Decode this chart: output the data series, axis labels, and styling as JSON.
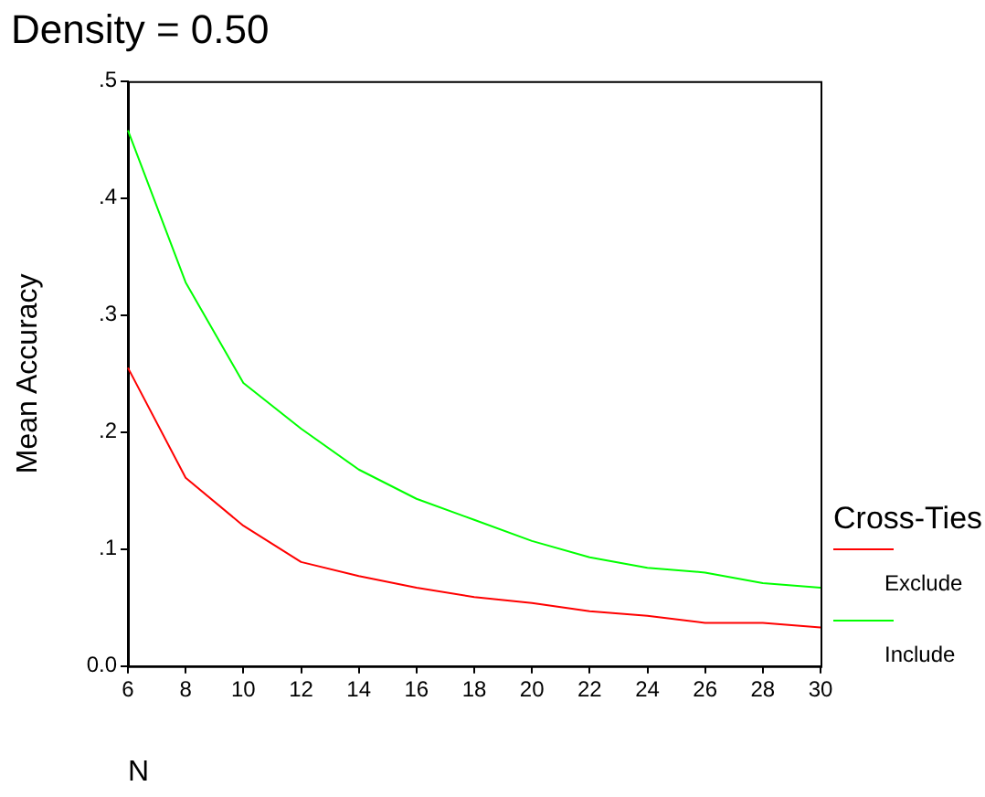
{
  "chart_data": {
    "type": "line",
    "title": "Density = 0.50",
    "xlabel": "N",
    "ylabel": "Mean Accuracy",
    "legend_title": "Cross-Ties",
    "x": [
      6,
      8,
      10,
      12,
      14,
      16,
      18,
      20,
      22,
      24,
      26,
      28,
      30
    ],
    "series": [
      {
        "name": "Exclude",
        "color": "#ff0000",
        "values": [
          0.255,
          0.161,
          0.12,
          0.089,
          0.077,
          0.067,
          0.059,
          0.054,
          0.047,
          0.043,
          0.037,
          0.037,
          0.033
        ]
      },
      {
        "name": "Include",
        "color": "#00ff00",
        "values": [
          0.458,
          0.328,
          0.242,
          0.203,
          0.168,
          0.143,
          0.125,
          0.107,
          0.093,
          0.084,
          0.08,
          0.071,
          0.067
        ]
      }
    ],
    "xlim": [
      6,
      30
    ],
    "xticks": [
      6,
      8,
      10,
      12,
      14,
      16,
      18,
      20,
      22,
      24,
      26,
      28,
      30
    ],
    "ylim": [
      0,
      0.5
    ],
    "yticks": [
      {
        "value": 0,
        "label": "0.0"
      },
      {
        "value": 0.1,
        "label": ".1"
      },
      {
        "value": 0.2,
        "label": ".2"
      },
      {
        "value": 0.3,
        "label": ".3"
      },
      {
        "value": 0.4,
        "label": ".4"
      },
      {
        "value": 0.5,
        "label": ".5"
      }
    ],
    "grid": false,
    "legend": "right",
    "marker": "none",
    "line_style": "solid"
  }
}
